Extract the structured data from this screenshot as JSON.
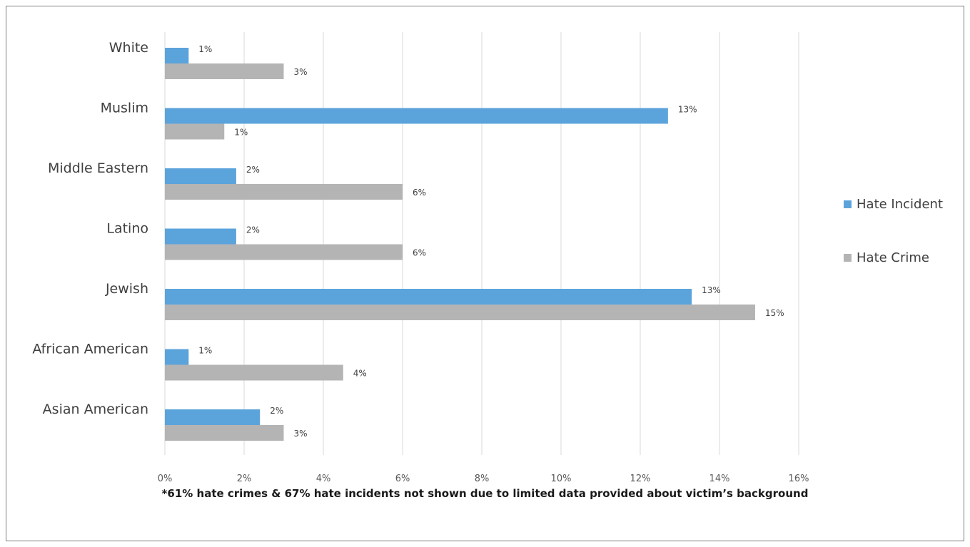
{
  "chart_data": {
    "type": "bar",
    "orientation": "horizontal",
    "categories": [
      "White",
      "Muslim",
      "Middle Eastern",
      "Latino",
      "Jewish",
      "African American",
      "Asian American"
    ],
    "series": [
      {
        "name": "Hate Incident",
        "color": "#5ba3db",
        "values": [
          0.6,
          12.7,
          1.8,
          1.8,
          13.3,
          0.6,
          2.4
        ],
        "labels": [
          "1%",
          "13%",
          "2%",
          "2%",
          "13%",
          "1%",
          "2%"
        ]
      },
      {
        "name": "Hate Crime",
        "color": "#b4b4b4",
        "values": [
          3.0,
          1.5,
          6.0,
          6.0,
          14.9,
          4.5,
          3.0
        ],
        "labels": [
          "3%",
          "1%",
          "6%",
          "6%",
          "15%",
          "4%",
          "3%"
        ]
      }
    ],
    "xlim": [
      0,
      16
    ],
    "xticks": [
      "0%",
      "2%",
      "4%",
      "6%",
      "8%",
      "10%",
      "12%",
      "14%",
      "16%"
    ],
    "grid": true,
    "legend_position": "right",
    "title": "",
    "xlabel": "",
    "ylabel": ""
  },
  "footnote": "*61% hate crimes & 67% hate incidents not shown due to limited data provided about victim’s background"
}
